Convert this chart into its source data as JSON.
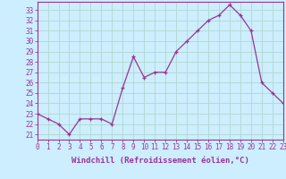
{
  "x": [
    0,
    1,
    2,
    3,
    4,
    5,
    6,
    7,
    8,
    9,
    10,
    11,
    12,
    13,
    14,
    15,
    16,
    17,
    18,
    19,
    20,
    21,
    22,
    23
  ],
  "y": [
    23.0,
    22.5,
    22.0,
    21.0,
    22.5,
    22.5,
    22.5,
    22.0,
    25.5,
    28.5,
    26.5,
    27.0,
    27.0,
    29.0,
    30.0,
    31.0,
    32.0,
    32.5,
    33.5,
    32.5,
    31.0,
    26.0,
    25.0,
    24.0
  ],
  "xlim": [
    0,
    23
  ],
  "ylim": [
    20.5,
    33.8
  ],
  "yticks": [
    21,
    22,
    23,
    24,
    25,
    26,
    27,
    28,
    29,
    30,
    31,
    32,
    33
  ],
  "xticks": [
    0,
    1,
    2,
    3,
    4,
    5,
    6,
    7,
    8,
    9,
    10,
    11,
    12,
    13,
    14,
    15,
    16,
    17,
    18,
    19,
    20,
    21,
    22,
    23
  ],
  "line_color": "#993399",
  "marker": "+",
  "bg_color": "#cceeff",
  "grid_color": "#aaddcc",
  "xlabel": "Windchill (Refroidissement éolien,°C)",
  "label_color": "#993399",
  "font": "monospace",
  "tick_fontsize": 5.5,
  "xlabel_fontsize": 6.5
}
